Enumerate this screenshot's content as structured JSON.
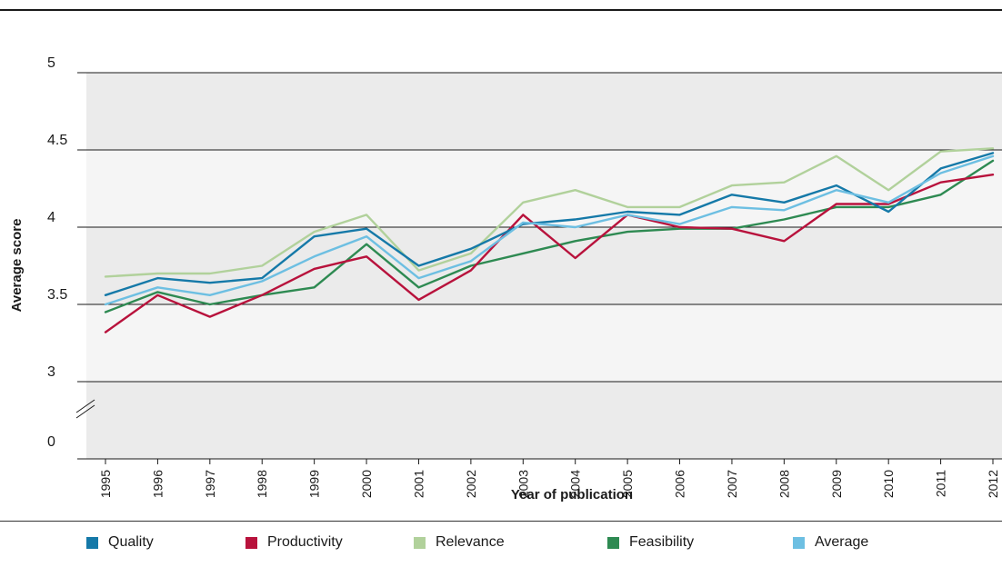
{
  "chart_data": {
    "type": "line",
    "xlabel": "Year of publication",
    "ylabel": "Average score",
    "ylim": [
      3,
      5
    ],
    "yticks": [
      "5",
      "4.5",
      "4",
      "3.5",
      "3"
    ],
    "y_break_label": "0",
    "categories": [
      "1995",
      "1996",
      "1997",
      "1998",
      "1999",
      "2000",
      "2001",
      "2002",
      "2003",
      "2004",
      "2005",
      "2006",
      "2007",
      "2008",
      "2009",
      "2010",
      "2011",
      "2012"
    ],
    "series": [
      {
        "name": "Relevance",
        "color": "#b1d19b",
        "values": [
          3.68,
          3.7,
          3.7,
          3.75,
          3.97,
          4.08,
          3.72,
          3.83,
          4.16,
          4.24,
          4.13,
          4.13,
          4.27,
          4.29,
          4.46,
          4.24,
          4.49,
          4.51
        ]
      },
      {
        "name": "Feasibility",
        "color": "#2e8a52",
        "values": [
          3.45,
          3.58,
          3.5,
          3.56,
          3.61,
          3.89,
          3.61,
          3.75,
          3.83,
          3.91,
          3.97,
          3.99,
          3.99,
          4.05,
          4.13,
          4.13,
          4.21,
          4.43
        ]
      },
      {
        "name": "Productivity",
        "color": "#b8123c",
        "values": [
          3.32,
          3.56,
          3.42,
          3.56,
          3.73,
          3.81,
          3.53,
          3.72,
          4.08,
          3.8,
          4.08,
          4.0,
          3.99,
          3.91,
          4.15,
          4.15,
          4.29,
          4.34
        ]
      },
      {
        "name": "Quality",
        "color": "#1579a8",
        "values": [
          3.56,
          3.67,
          3.64,
          3.67,
          3.94,
          3.99,
          3.75,
          3.86,
          4.02,
          4.05,
          4.1,
          4.08,
          4.21,
          4.16,
          4.27,
          4.1,
          4.38,
          4.48
        ]
      },
      {
        "name": "Average",
        "color": "#6dbfe2",
        "values": [
          3.5,
          3.61,
          3.56,
          3.65,
          3.81,
          3.94,
          3.67,
          3.78,
          4.03,
          4.0,
          4.08,
          4.02,
          4.13,
          4.11,
          4.24,
          4.16,
          4.35,
          4.46
        ]
      }
    ],
    "legend": [
      {
        "label": "Quality",
        "color": "#1579a8"
      },
      {
        "label": "Productivity",
        "color": "#b8123c"
      },
      {
        "label": "Relevance",
        "color": "#b1d19b"
      },
      {
        "label": "Feasibility",
        "color": "#2e8a52"
      },
      {
        "label": "Average",
        "color": "#6dbfe2"
      }
    ],
    "legend_position": "bottom",
    "grid": true
  }
}
